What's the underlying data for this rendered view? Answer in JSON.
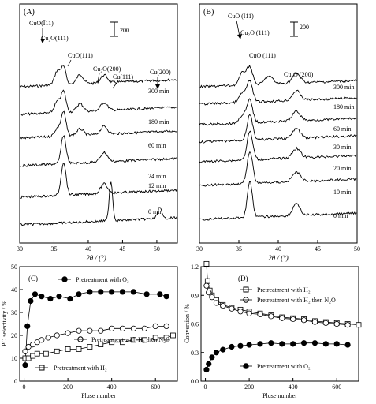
{
  "chart_data": [
    {
      "panel": "(A)",
      "type": "line",
      "xlabel": "2θ / (°)",
      "ylabel": "",
      "xlim": [
        30,
        53
      ],
      "xticks": [
        30,
        35,
        40,
        45,
        50
      ],
      "scale_bar_label": "200",
      "annotations": [
        "CuO(Ī11)",
        "Cu₂O(111)",
        "CuO(111)",
        "Cu₂O(200)",
        "Cu(111)",
        "Cu(200)"
      ],
      "series": [
        {
          "label": "300 min",
          "baseline": 0
        },
        {
          "label": "180 min",
          "baseline": 1
        },
        {
          "label": "60 min",
          "baseline": 2
        },
        {
          "label": "24 min",
          "baseline": 3
        },
        {
          "label": "12 min",
          "baseline": 4
        },
        {
          "label": "0 min",
          "baseline": 5
        }
      ]
    },
    {
      "panel": "(B)",
      "type": "line",
      "xlabel": "2θ / (°)",
      "ylabel": "",
      "xlim": [
        30,
        50
      ],
      "xticks": [
        30,
        35,
        40,
        45,
        50
      ],
      "scale_bar_label": "200",
      "annotations": [
        "CuO (Ī11)",
        "Cu₂O (111)",
        "CuO (111)",
        "Cu₂O (200)"
      ],
      "series": [
        {
          "label": "300 min"
        },
        {
          "label": "180 min"
        },
        {
          "label": "60 min"
        },
        {
          "label": "30 min"
        },
        {
          "label": "20 min"
        },
        {
          "label": "10 min"
        },
        {
          "label": "0 min"
        }
      ]
    },
    {
      "panel": "(C)",
      "type": "line",
      "xlabel": "Pluse number",
      "ylabel": "PO selectivity / %",
      "xlim": [
        -20,
        700
      ],
      "ylim": [
        0,
        50
      ],
      "xticks": [
        0,
        200,
        400,
        600
      ],
      "yticks": [
        0,
        10,
        20,
        30,
        40,
        50
      ],
      "series": [
        {
          "name": "Pretreatment with O₂",
          "marker": "filled-circle",
          "x": [
            5,
            15,
            30,
            50,
            80,
            120,
            160,
            210,
            250,
            300,
            350,
            400,
            450,
            500,
            560,
            620,
            650
          ],
          "y": [
            7,
            24,
            35,
            38,
            37,
            36,
            37,
            36,
            38,
            39,
            39,
            39,
            39,
            39,
            38,
            38,
            37
          ]
        },
        {
          "name": "Pretreatment with H₂ then N₂O",
          "marker": "open-circle",
          "x": [
            5,
            20,
            40,
            60,
            80,
            110,
            150,
            200,
            250,
            300,
            350,
            400,
            450,
            500,
            550,
            600,
            650
          ],
          "y": [
            13,
            15,
            16,
            17,
            18,
            19,
            20,
            21,
            22,
            22,
            22,
            23,
            23,
            23,
            23,
            24,
            24
          ]
        },
        {
          "name": "Pretreatment with H₂",
          "marker": "open-square",
          "x": [
            5,
            20,
            40,
            60,
            100,
            150,
            200,
            250,
            300,
            350,
            400,
            450,
            500,
            550,
            600,
            650,
            680
          ],
          "y": [
            10,
            10,
            11,
            12,
            12,
            13,
            14,
            14,
            15,
            16,
            17,
            17,
            18,
            18,
            19,
            19,
            20
          ]
        }
      ]
    },
    {
      "panel": "(D)",
      "type": "line",
      "xlabel": "Pluse number",
      "ylabel": "Conversion / %",
      "xlim": [
        -20,
        700
      ],
      "ylim": [
        0,
        1.2
      ],
      "xticks": [
        0,
        200,
        400,
        600
      ],
      "yticks": [
        0.0,
        0.3,
        0.6,
        0.9,
        1.2
      ],
      "series": [
        {
          "name": "Pretreatment with H₂",
          "marker": "open-square",
          "x": [
            5,
            10,
            20,
            30,
            50,
            80,
            120,
            160,
            200,
            250,
            300,
            350,
            400,
            450,
            500,
            550,
            600,
            650,
            700
          ],
          "y": [
            1.23,
            1.05,
            0.95,
            0.9,
            0.85,
            0.8,
            0.77,
            0.75,
            0.73,
            0.71,
            0.69,
            0.67,
            0.66,
            0.65,
            0.63,
            0.62,
            0.61,
            0.6,
            0.59
          ]
        },
        {
          "name": "Pretreatment with H₂ then N₂O",
          "marker": "open-circle",
          "x": [
            5,
            15,
            30,
            50,
            80,
            120,
            160,
            200,
            250,
            300,
            350,
            400,
            450,
            500,
            550,
            600,
            650
          ],
          "y": [
            1.0,
            0.93,
            0.88,
            0.82,
            0.79,
            0.76,
            0.73,
            0.71,
            0.7,
            0.68,
            0.66,
            0.65,
            0.64,
            0.62,
            0.61,
            0.6,
            0.59
          ]
        },
        {
          "name": "Pretreatment with O₂",
          "marker": "filled-circle",
          "x": [
            5,
            15,
            30,
            50,
            80,
            120,
            160,
            200,
            250,
            300,
            350,
            400,
            450,
            500,
            550,
            600,
            650
          ],
          "y": [
            0.12,
            0.18,
            0.25,
            0.3,
            0.33,
            0.36,
            0.37,
            0.38,
            0.39,
            0.4,
            0.39,
            0.39,
            0.4,
            0.4,
            0.39,
            0.39,
            0.38
          ]
        }
      ]
    }
  ]
}
